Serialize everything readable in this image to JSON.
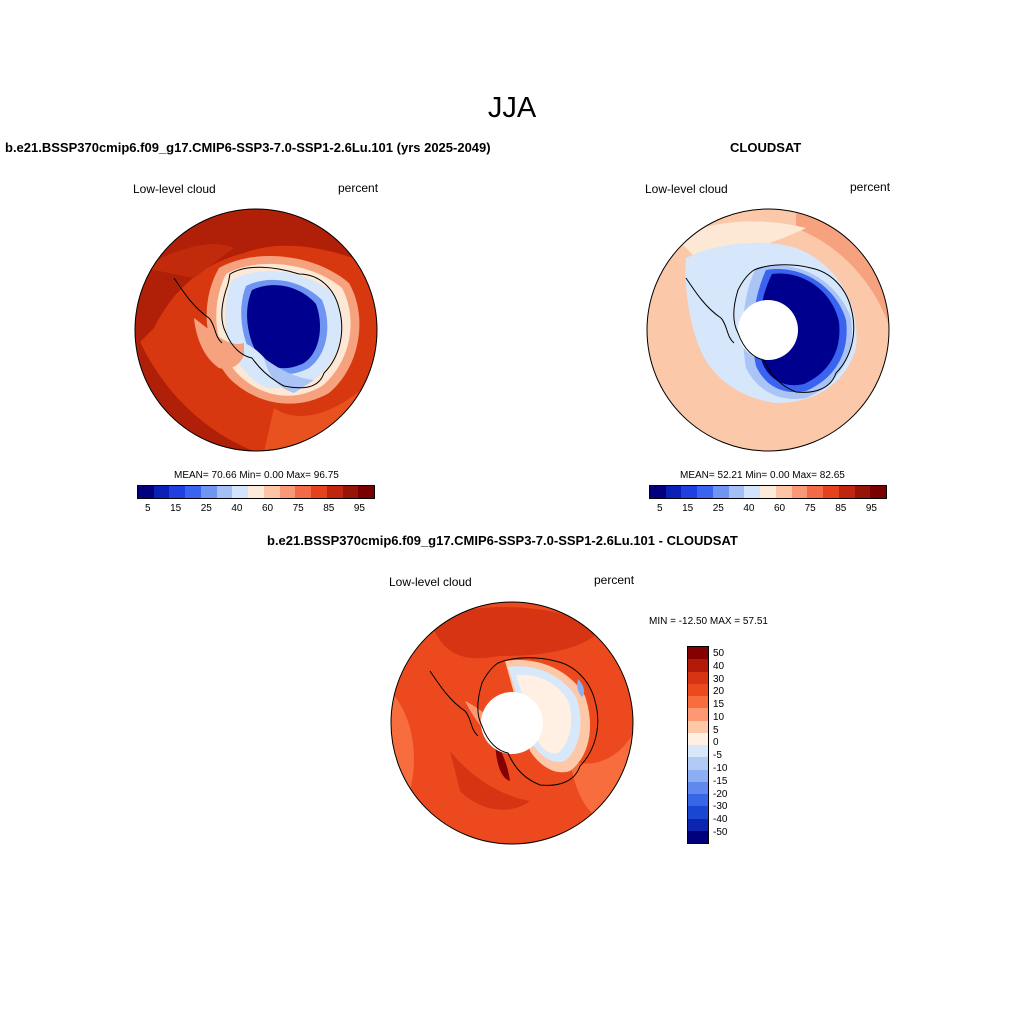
{
  "title": "JJA",
  "panels": {
    "left": {
      "case_title": "b.e21.BSSP370cmip6.f09_g17.CMIP6-SSP3-7.0-SSP1-2.6Lu.101 (yrs 2025-2049)",
      "variable": "Low-level cloud",
      "units": "percent",
      "stats": "MEAN=  70.66  Min=    0.00  Max=  96.75"
    },
    "right": {
      "case_title": "CLOUDSAT",
      "variable": "Low-level cloud",
      "units": "percent",
      "stats": "MEAN=  52.21  Min=    0.00  Max=  82.65"
    },
    "diff": {
      "case_title": "b.e21.BSSP370cmip6.f09_g17.CMIP6-SSP3-7.0-SSP1-2.6Lu.101 - CLOUDSAT",
      "variable": "Low-level cloud",
      "units": "percent",
      "stats": "MIN = -12.50 MAX =  57.51"
    }
  },
  "colorbar_main": {
    "colors": [
      "#00007f",
      "#0a1fb5",
      "#1f3fe0",
      "#3a64f0",
      "#6f95f3",
      "#a3bff7",
      "#d2e3fb",
      "#fdebd9",
      "#fcc6a6",
      "#f99878",
      "#f26a47",
      "#e4411f",
      "#c02512",
      "#981408",
      "#780000"
    ],
    "labels": [
      "5",
      "15",
      "25",
      "40",
      "60",
      "75",
      "85",
      "95"
    ]
  },
  "colorbar_diff": {
    "colors": [
      "#850000",
      "#b01a07",
      "#d63412",
      "#ec4a1e",
      "#f86d3d",
      "#fc9972",
      "#fdc8a7",
      "#fff0e3",
      "#d8e8fb",
      "#b2cbf6",
      "#8daef2",
      "#6188ee",
      "#3766e6",
      "#1b46d1",
      "#0c24b0",
      "#00007a"
    ],
    "labels": [
      "50",
      "40",
      "30",
      "20",
      "15",
      "10",
      "5",
      "0",
      "-5",
      "-10",
      "-15",
      "-20",
      "-30",
      "-40",
      "-50"
    ]
  },
  "map_colors": {
    "dark_red": "#b01f08",
    "red": "#d8380f",
    "orange_red": "#e8521e",
    "salmon": "#f7a27f",
    "light_salmon": "#fbc8aa",
    "peach": "#fde7d5",
    "pale_blue": "#d6e6fb",
    "light_blue": "#a9c4f5",
    "mid_blue": "#3a64f0",
    "navy": "#00008f"
  }
}
